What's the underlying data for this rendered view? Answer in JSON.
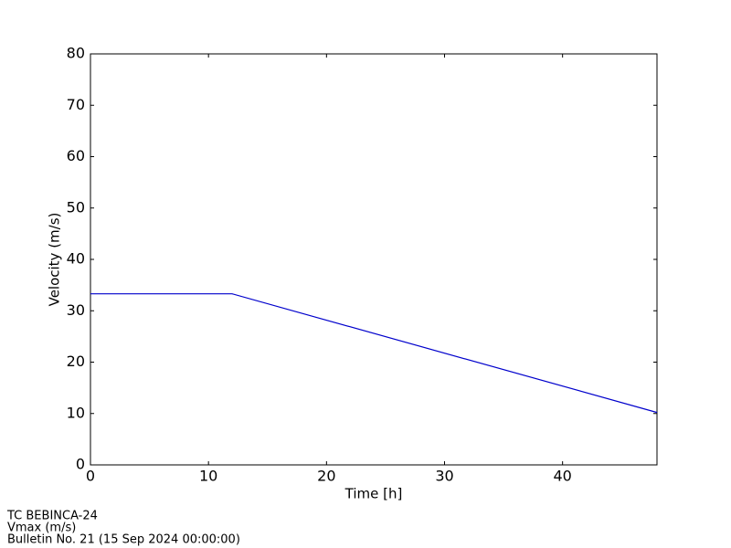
{
  "chart_data": {
    "type": "line",
    "x_label": "Time [h]",
    "y_label": "Velocity (m/s)",
    "x": [
      0,
      12,
      48
    ],
    "series": [
      {
        "name": "Vmax",
        "color": "#0000cc",
        "values": [
          33.3,
          33.3,
          10.2
        ]
      }
    ],
    "xlim": [
      0,
      48
    ],
    "xticks": [
      0,
      10,
      20,
      30,
      40
    ],
    "ylim": [
      0,
      80
    ],
    "yticks": [
      0,
      10,
      20,
      30,
      40,
      50,
      60,
      70,
      80
    ],
    "grid": false,
    "footer": [
      "TC BEBINCA-24",
      "Vmax (m/s)",
      "Bulletin No. 21 (15 Sep 2024  00:00:00)"
    ]
  }
}
